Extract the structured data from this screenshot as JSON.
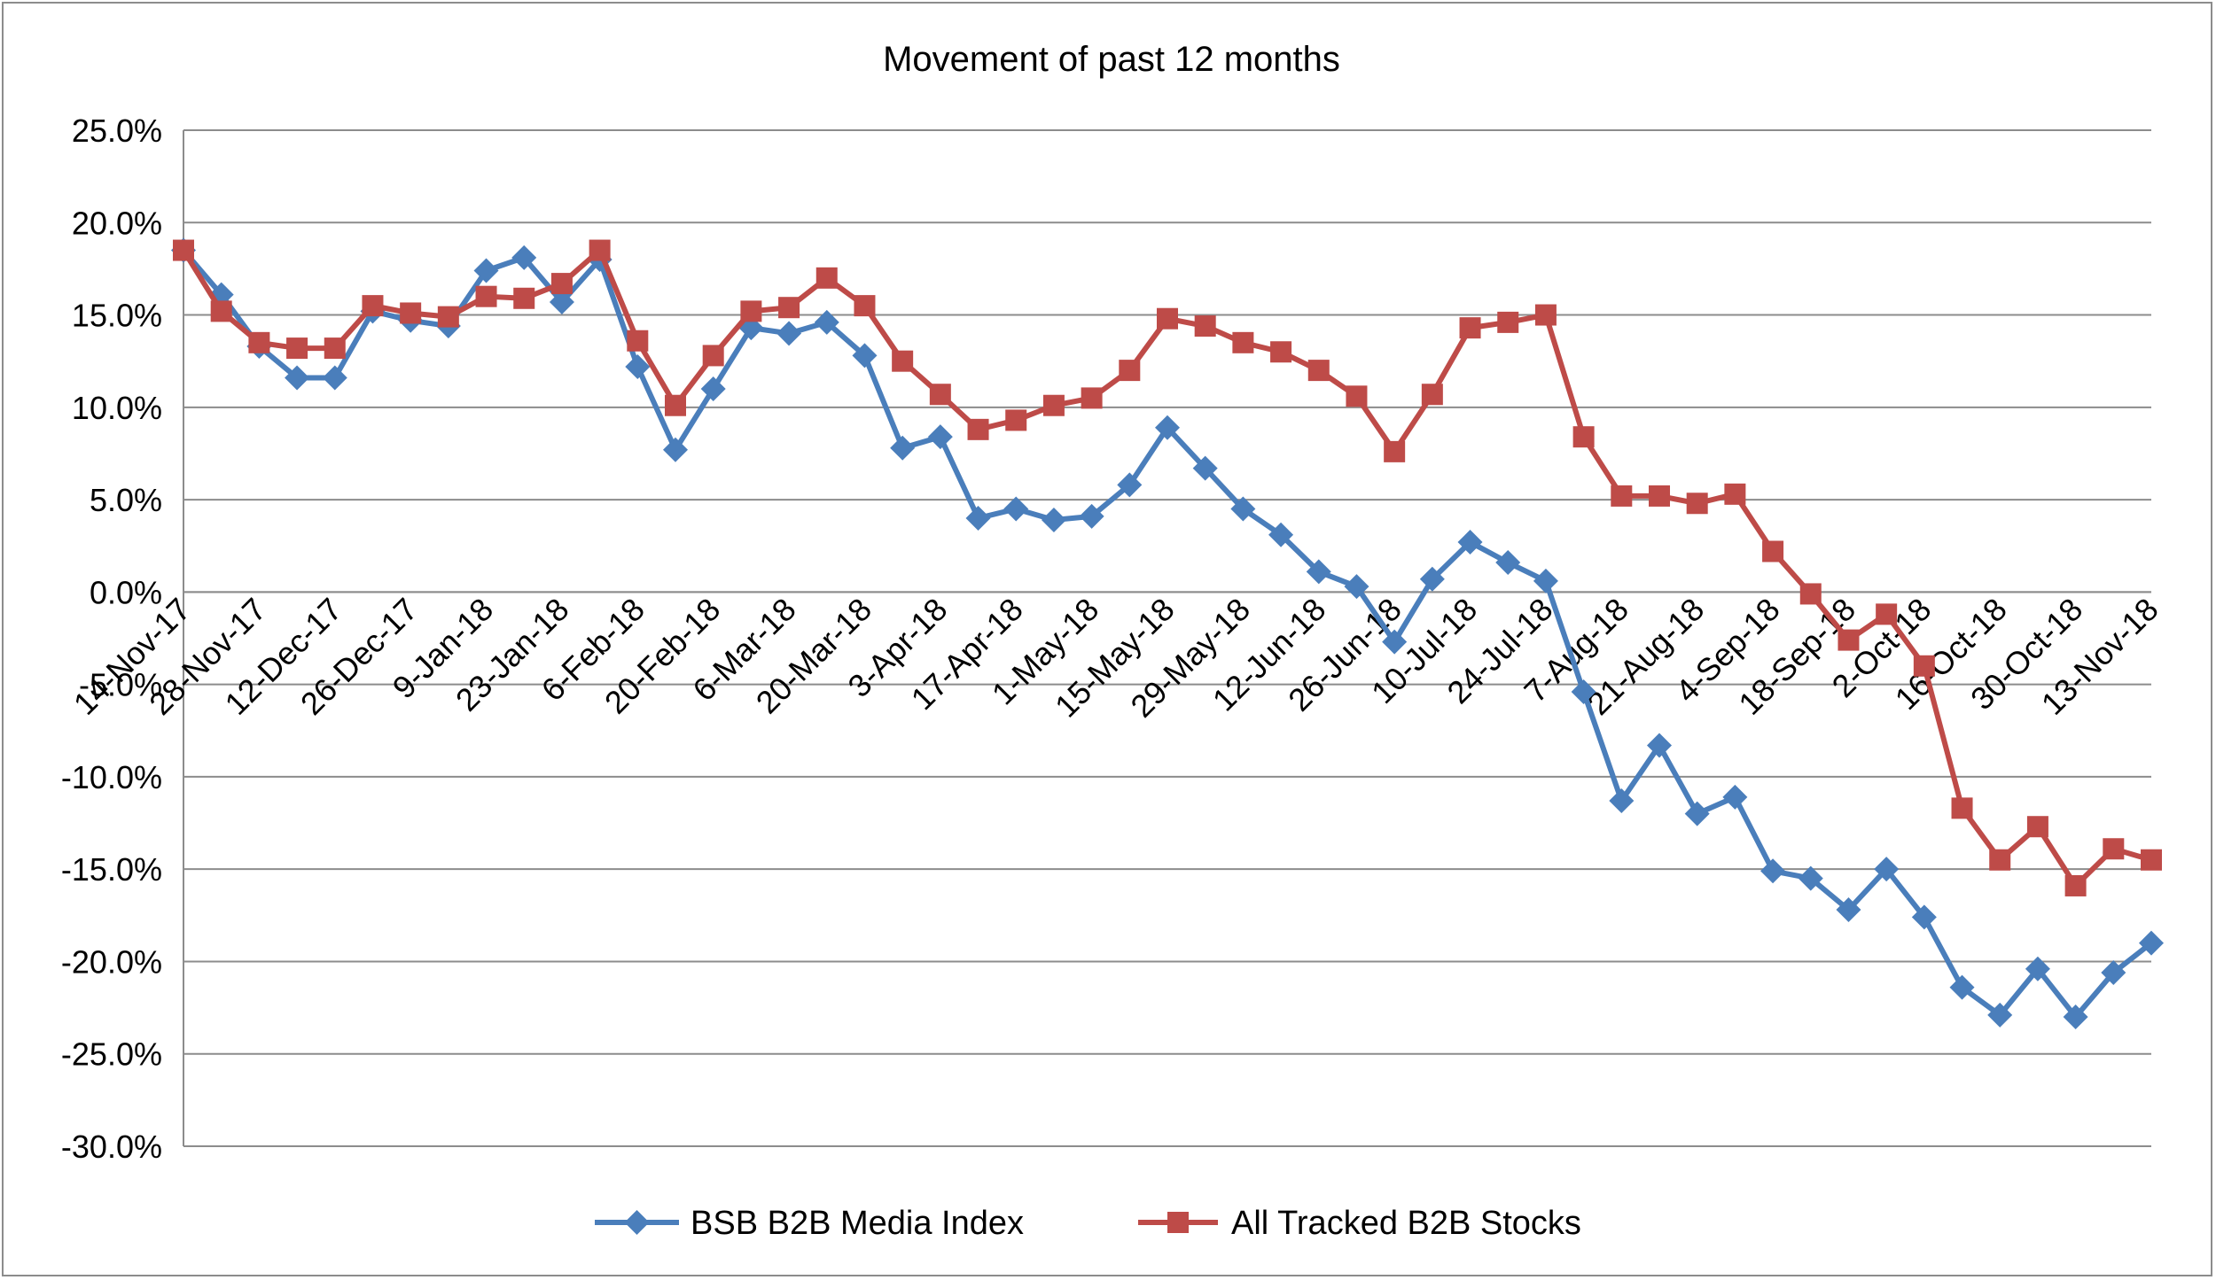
{
  "chart_data": {
    "type": "line",
    "title": "Movement of past 12 months",
    "xlabel": "",
    "ylabel": "",
    "ylim": [
      -0.3,
      0.25
    ],
    "yticks": [
      0.25,
      0.2,
      0.15,
      0.1,
      0.05,
      0.0,
      -0.05,
      -0.1,
      -0.15,
      -0.2,
      -0.25,
      -0.3
    ],
    "ytick_labels": [
      "25.0%",
      "20.0%",
      "15.0%",
      "10.0%",
      "5.0%",
      "0.0%",
      "-5.0%",
      "-10.0%",
      "-15.0%",
      "-20.0%",
      "-25.0%",
      "-30.0%"
    ],
    "x_labels": [
      "14-Nov-17",
      "28-Nov-17",
      "12-Dec-17",
      "26-Dec-17",
      "9-Jan-18",
      "23-Jan-18",
      "6-Feb-18",
      "20-Feb-18",
      "6-Mar-18",
      "20-Mar-18",
      "3-Apr-18",
      "17-Apr-18",
      "1-May-18",
      "15-May-18",
      "29-May-18",
      "12-Jun-18",
      "26-Jun-18",
      "10-Jul-18",
      "24-Jul-18",
      "7-Aug-18",
      "21-Aug-18",
      "4-Sep-18",
      "18-Sep-18",
      "2-Oct-18",
      "16-Oct-18",
      "30-Oct-18",
      "13-Nov-18"
    ],
    "grid": true,
    "legend_position": "bottom",
    "series": [
      {
        "name": "BSB B2B Media Index",
        "color": "#4a7ebb",
        "marker": "diamond",
        "values": [
          0.185,
          0.161,
          0.133,
          0.116,
          0.116,
          0.152,
          0.147,
          0.144,
          0.174,
          0.181,
          0.157,
          0.18,
          0.122,
          0.077,
          0.11,
          0.143,
          0.14,
          0.146,
          0.128,
          0.078,
          0.084,
          0.04,
          0.045,
          0.039,
          0.041,
          0.058,
          0.089,
          0.067,
          0.045,
          0.031,
          0.011,
          0.003,
          -0.027,
          0.007,
          0.027,
          0.016,
          0.006,
          -0.054,
          -0.113,
          -0.083,
          -0.12,
          -0.111,
          -0.151,
          -0.155,
          -0.172,
          -0.15,
          -0.176,
          -0.214,
          -0.229,
          -0.204,
          -0.23,
          -0.206,
          -0.19
        ]
      },
      {
        "name": "All Tracked B2B Stocks",
        "color": "#be4b48",
        "marker": "square",
        "values": [
          0.185,
          0.152,
          0.135,
          0.132,
          0.132,
          0.155,
          0.151,
          0.149,
          0.16,
          0.159,
          0.167,
          0.185,
          0.136,
          0.101,
          0.128,
          0.152,
          0.154,
          0.17,
          0.155,
          0.125,
          0.107,
          0.088,
          0.093,
          0.101,
          0.105,
          0.12,
          0.148,
          0.144,
          0.135,
          0.13,
          0.12,
          0.106,
          0.076,
          0.107,
          0.143,
          0.146,
          0.15,
          0.084,
          0.052,
          0.052,
          0.048,
          0.053,
          0.022,
          -0.001,
          -0.026,
          -0.012,
          -0.04,
          -0.117,
          -0.145,
          -0.127,
          -0.159,
          -0.139,
          -0.145
        ]
      }
    ]
  }
}
